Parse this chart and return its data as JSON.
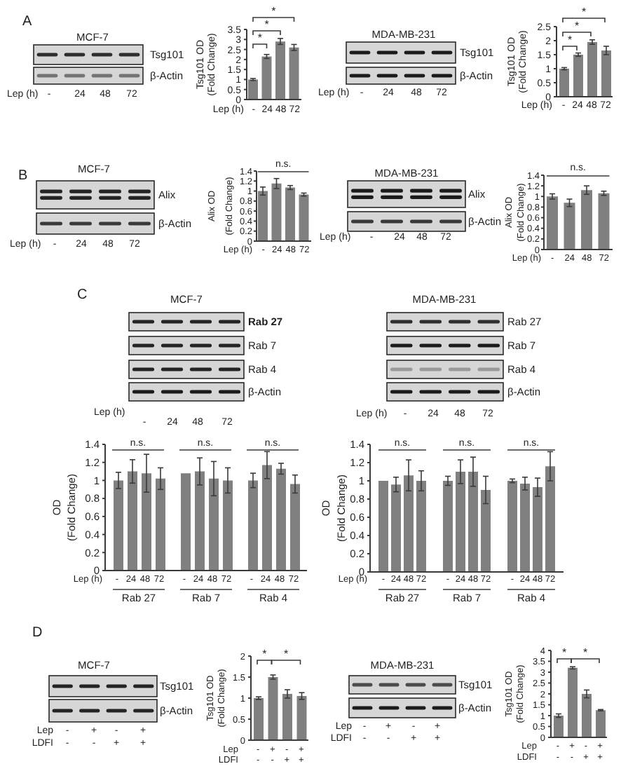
{
  "chart_data": [
    {
      "type": "other",
      "title": "A"
    },
    {
      "type": "other",
      "title": "MCF-7",
      "annotations": [
        "Tsg101",
        "β-Actin"
      ],
      "categories": [
        "-",
        "24",
        "48",
        "72"
      ],
      "xlabel": "Lep (h)"
    },
    {
      "type": "bar",
      "categories": [
        "-",
        "24",
        "48",
        "72"
      ],
      "values": [
        1,
        2.15,
        2.9,
        2.6
      ],
      "errors": [
        0.05,
        0.1,
        0.15,
        0.15
      ],
      "color": "#808080",
      "xlabel": "Lep (h)",
      "ylabel": "Tsg101 OD\n(Fold Change)",
      "ylim": [
        0,
        3.5
      ],
      "yticks": [
        0,
        0.5,
        1,
        1.5,
        2,
        2.5,
        3,
        3.5
      ],
      "annotations": [
        "*",
        "*",
        "*"
      ]
    },
    {
      "type": "other",
      "title": "MDA-MB-231",
      "annotations": [
        "Tsg101",
        "β-Actin"
      ],
      "categories": [
        "-",
        "24",
        "48",
        "72"
      ],
      "xlabel": "Lep (h)"
    },
    {
      "type": "bar",
      "categories": [
        "-",
        "24",
        "48",
        "72"
      ],
      "values": [
        1,
        1.5,
        1.95,
        1.65
      ],
      "errors": [
        0.04,
        0.06,
        0.08,
        0.15
      ],
      "color": "#808080",
      "xlabel": "Lep (h)",
      "ylabel": "Tsg101 OD\n(Fold Change)",
      "ylim": [
        0,
        2.5
      ],
      "yticks": [
        0,
        0.5,
        1,
        1.5,
        2,
        2.5
      ],
      "annotations": [
        "*",
        "*",
        "*"
      ]
    },
    {
      "type": "other",
      "title": "B"
    },
    {
      "type": "other",
      "title": "MCF-7",
      "annotations": [
        "Alix",
        "β-Actin"
      ],
      "categories": [
        "-",
        "24",
        "48",
        "72"
      ],
      "xlabel": "Lep (h)"
    },
    {
      "type": "bar",
      "categories": [
        "-",
        "24",
        "48",
        "72"
      ],
      "values": [
        1,
        1.15,
        1.07,
        0.93
      ],
      "errors": [
        0.08,
        0.1,
        0.04,
        0.03
      ],
      "color": "#808080",
      "xlabel": "Lep (h)",
      "ylabel": "Alix OD\n(Fold Change)",
      "ylim": [
        0,
        1.4
      ],
      "yticks": [
        0,
        0.2,
        0.4,
        0.6,
        0.8,
        1,
        1.2,
        1.4
      ],
      "annotations": [
        "n.s."
      ]
    },
    {
      "type": "other",
      "title": "MDA-MB-231",
      "annotations": [
        "Alix",
        "β-Actin"
      ],
      "categories": [
        "-",
        "24",
        "48",
        "72"
      ],
      "xlabel": "Lep (h)"
    },
    {
      "type": "bar",
      "categories": [
        "-",
        "24",
        "48",
        "72"
      ],
      "values": [
        1,
        0.88,
        1.12,
        1.06
      ],
      "errors": [
        0.05,
        0.07,
        0.08,
        0.04
      ],
      "color": "#808080",
      "xlabel": "Lep (h)",
      "ylabel": "Alix OD\n(Fold Change)",
      "ylim": [
        0,
        1.4
      ],
      "yticks": [
        0,
        0.2,
        0.4,
        0.6,
        0.8,
        1,
        1.2,
        1.4
      ],
      "annotations": [
        "n.s."
      ]
    },
    {
      "type": "other",
      "title": "C"
    },
    {
      "type": "other",
      "title": "MCF-7",
      "annotations": [
        "Rab 27",
        "Rab 7",
        "Rab 4",
        "β-Actin"
      ],
      "categories": [
        "-",
        "24",
        "48",
        "72"
      ],
      "xlabel": "Lep (h)"
    },
    {
      "type": "other",
      "title": "MDA-MB-231",
      "annotations": [
        "Rab 27",
        "Rab 7",
        "Rab 4",
        "β-Actin"
      ],
      "categories": [
        "-",
        "24",
        "48",
        "72"
      ],
      "xlabel": "Lep (h)"
    },
    {
      "type": "bar",
      "categories": [
        "Rab 27",
        "Rab 7",
        "Rab 4"
      ],
      "series": [
        {
          "name": "-",
          "color": "#808080",
          "values": [
            1,
            1.08,
            1
          ],
          "errors": [
            0.09,
            null,
            0.08
          ]
        },
        {
          "name": "24",
          "color": "#808080",
          "values": [
            1.1,
            1.1,
            1.17
          ],
          "errors": [
            0.13,
            0.15,
            0.15
          ]
        },
        {
          "name": "48",
          "color": "#808080",
          "values": [
            1.08,
            1.02,
            1.13
          ],
          "errors": [
            0.21,
            0.19,
            0.06
          ]
        },
        {
          "name": "72",
          "color": "#808080",
          "values": [
            1.02,
            1,
            0.96
          ],
          "errors": [
            0.12,
            0.14,
            0.1
          ]
        }
      ],
      "xlabel": "Lep (h)",
      "ylabel": "OD\n(Fold Change)",
      "ylim": [
        0,
        1.4
      ],
      "yticks": [
        0,
        0.2,
        0.4,
        0.6,
        0.8,
        1,
        1.2,
        1.4
      ],
      "annotations": [
        "n.s.",
        "n.s.",
        "n.s."
      ]
    },
    {
      "type": "bar",
      "categories": [
        "Rab 27",
        "Rab 7",
        "Rab 4"
      ],
      "series": [
        {
          "name": "-",
          "color": "#808080",
          "values": [
            1,
            1,
            1
          ],
          "errors": [
            null,
            0.05,
            0.02
          ]
        },
        {
          "name": "24",
          "color": "#808080",
          "values": [
            0.96,
            1.1,
            0.97
          ],
          "errors": [
            0.08,
            0.13,
            0.07
          ]
        },
        {
          "name": "48",
          "color": "#808080",
          "values": [
            1.06,
            1.1,
            0.93
          ],
          "errors": [
            0.17,
            0.16,
            0.1
          ]
        },
        {
          "name": "72",
          "color": "#808080",
          "values": [
            1,
            0.9,
            1.16
          ],
          "errors": [
            0.11,
            0.15,
            0.16
          ]
        }
      ],
      "xlabel": "Lep (h)",
      "ylabel": "OD\n(Fold Change)",
      "ylim": [
        0,
        1.4
      ],
      "yticks": [
        0,
        0.2,
        0.4,
        0.6,
        0.8,
        1,
        1.2,
        1.4
      ],
      "annotations": [
        "n.s.",
        "n.s.",
        "n.s."
      ]
    },
    {
      "type": "other",
      "title": "D"
    },
    {
      "type": "other",
      "title": "MCF-7",
      "annotations": [
        "Tsg101",
        "β-Actin"
      ],
      "categories": [
        "-\n-",
        "+\n-",
        "-\n+",
        "+\n+"
      ],
      "xlabel": "Lep\nLDFI"
    },
    {
      "type": "bar",
      "categories": [
        "-\n-",
        "+\n-",
        "-\n+",
        "+\n+"
      ],
      "values": [
        1,
        1.5,
        1.1,
        1.05
      ],
      "errors": [
        0.03,
        0.05,
        0.1,
        0.08
      ],
      "color": "#808080",
      "xlabel": "Lep\nLDFI",
      "ylabel": "Tsg101 OD\n(Fold Change)",
      "ylim": [
        0,
        2
      ],
      "yticks": [
        0,
        0.5,
        1,
        1.5,
        2
      ],
      "annotations": [
        "*",
        "*"
      ]
    },
    {
      "type": "other",
      "title": "MDA-MB-231",
      "annotations": [
        "Tsg101",
        "β-Actin"
      ],
      "categories": [
        "-\n-",
        "+\n-",
        "-\n+",
        "+\n+"
      ],
      "xlabel": "Lep\nLDFI"
    },
    {
      "type": "bar",
      "categories": [
        "-\n-",
        "+\n-",
        "-\n+",
        "+\n+"
      ],
      "values": [
        1,
        3.2,
        2,
        1.25
      ],
      "errors": [
        0.08,
        0.05,
        0.18,
        0.03
      ],
      "color": "#808080",
      "xlabel": "Lep\nLDFI",
      "ylabel": "Tsg101 OD\n(Fold Change)",
      "ylim": [
        0,
        4
      ],
      "yticks": [
        0,
        0.5,
        1,
        1.5,
        2,
        2.5,
        3,
        3.5,
        4
      ],
      "annotations": [
        "*",
        "*"
      ]
    }
  ]
}
